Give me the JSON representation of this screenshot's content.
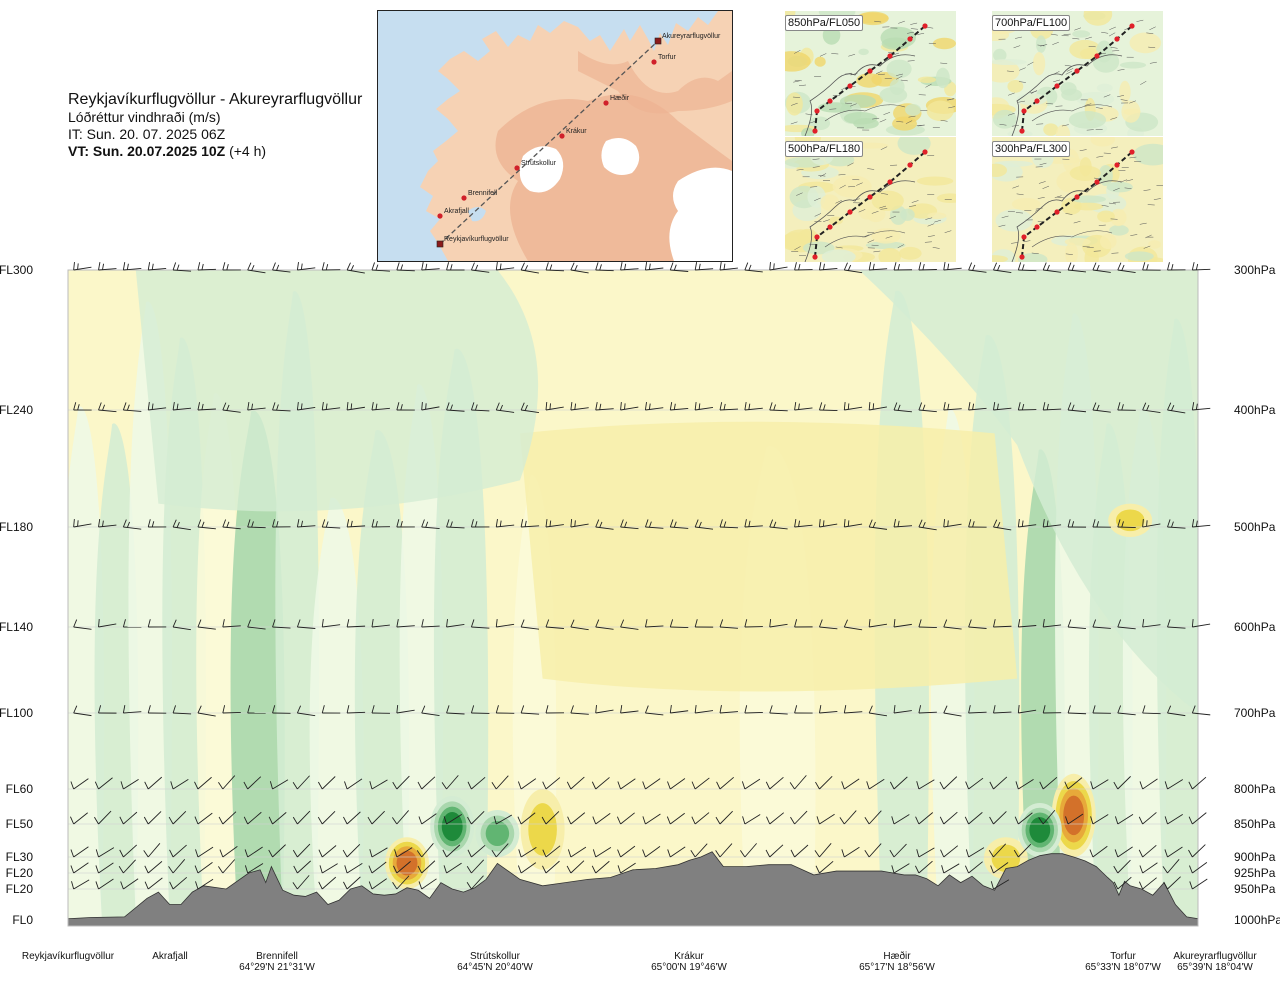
{
  "header": {
    "route": "Reykjavíkurflugvöllur - Akureyrarflugvöllur",
    "variable": "Lóðréttur vindhraði (m/s)",
    "issue_time": "IT: Sun. 20. 07. 2025 06Z",
    "valid_time_bold": "VT: Sun. 20.07.2025 10Z",
    "valid_time_offset": " (+4 h)"
  },
  "map": {
    "colors": {
      "sea": "#c6def0",
      "land": "#f6d2b4",
      "highland": "#eeb493",
      "glacier": "#ffffff",
      "route": "#d0202a"
    },
    "waypoints": [
      {
        "name": "Akureyrarflugvöllur",
        "kind": "airport"
      },
      {
        "name": "Torfur",
        "kind": "point"
      },
      {
        "name": "Hæðir",
        "kind": "point"
      },
      {
        "name": "Krákur",
        "kind": "point"
      },
      {
        "name": "Strútskollur",
        "kind": "point"
      },
      {
        "name": "Brennifell",
        "kind": "point"
      },
      {
        "name": "Akrafjall",
        "kind": "point"
      },
      {
        "name": "Reykjavíkurflugvöllur",
        "kind": "airport"
      }
    ]
  },
  "insets": [
    {
      "label": "850hPa/FL050"
    },
    {
      "label": "700hPa/FL100"
    },
    {
      "label": "500hPa/FL180"
    },
    {
      "label": "300hPa/FL300"
    }
  ],
  "chart_data": {
    "type": "heatmap",
    "subtype": "vertical cross-section",
    "title": "Reykjavíkurflugvöllur - Akureyrarflugvöllur",
    "variable": "Lóðréttur vindhraði (m/s)",
    "colors": {
      "strong_up": "#1e8a3a",
      "mod_up": "#61b572",
      "weak_up": "#a9d7ad",
      "very_weak_up": "#d4ecd3",
      "near_zero": "#eef8e6",
      "very_weak_down": "#fbf9d8",
      "weak_down": "#f7eeaa",
      "mod_down": "#ecd84a",
      "strong_down": "#e7a93a",
      "very_strong_down": "#d3712a",
      "terrain": "#808080"
    },
    "left_axis_ticks": [
      {
        "label": "FL300",
        "hpa": 300
      },
      {
        "label": "FL240",
        "hpa": 400
      },
      {
        "label": "FL180",
        "hpa": 500
      },
      {
        "label": "FL140",
        "hpa": 600
      },
      {
        "label": "FL100",
        "hpa": 700
      },
      {
        "label": "FL60",
        "hpa": 800
      },
      {
        "label": "FL50",
        "hpa": 850
      },
      {
        "label": "FL30",
        "hpa": 900
      },
      {
        "label": "FL20",
        "hpa": 925
      },
      {
        "label": "FL20",
        "hpa": 950
      },
      {
        "label": "FL0",
        "hpa": 1000
      }
    ],
    "right_axis_ticks": [
      "300hPa",
      "400hPa",
      "500hPa",
      "600hPa",
      "700hPa",
      "800hPa",
      "850hPa",
      "900hPa",
      "925hPa",
      "950hPa",
      "1000hPa"
    ],
    "pressure_levels": [
      300,
      400,
      500,
      600,
      700,
      800,
      850,
      900,
      925,
      950,
      1000
    ],
    "route_points": [
      {
        "name": "Reykjavíkurflugvöllur",
        "coord": "",
        "distance": 0
      },
      {
        "name": "Akrafjall",
        "coord": "",
        "distance": 8
      },
      {
        "name": "Brennifell",
        "coord": "64°29'N 21°31'W",
        "distance": 19
      },
      {
        "name": "Strútskollur",
        "coord": "64°45'N 20°40'W",
        "distance": 38
      },
      {
        "name": "Krákur",
        "coord": "65°00'N 19°46'W",
        "distance": 57
      },
      {
        "name": "Hæðir",
        "coord": "65°17'N 18°56'W",
        "distance": 75
      },
      {
        "name": "Torfur",
        "coord": "65°33'N 18°07'W",
        "distance": 94
      },
      {
        "name": "Akureyrarflugvöllur",
        "coord": "65°39'N 18°04'W",
        "distance": 100
      }
    ],
    "terrain_profile": {
      "distance": [
        0,
        2,
        5,
        7,
        8,
        9,
        10,
        11,
        12,
        14,
        16,
        17,
        17.5,
        18,
        19,
        20,
        21,
        22,
        23,
        24,
        25,
        26,
        27,
        28,
        29,
        30,
        31,
        32,
        33,
        34,
        35,
        36,
        37,
        38,
        40,
        42,
        44,
        46,
        48,
        50,
        52,
        54,
        55,
        56,
        57,
        58,
        60,
        62,
        64,
        66,
        68,
        70,
        72,
        74,
        75,
        76,
        77,
        78,
        79,
        80,
        81,
        82,
        83,
        84,
        85,
        86,
        87,
        88,
        89,
        90,
        91,
        92,
        92.5,
        93,
        93.5,
        94,
        95,
        96,
        97,
        98,
        99,
        100
      ],
      "hpa": [
        998,
        996,
        995,
        965,
        955,
        975,
        975,
        955,
        945,
        950,
        925,
        920,
        940,
        915,
        952,
        960,
        962,
        955,
        975,
        968,
        950,
        945,
        958,
        960,
        958,
        948,
        952,
        965,
        940,
        950,
        955,
        948,
        935,
        910,
        935,
        945,
        940,
        935,
        932,
        920,
        918,
        912,
        905,
        900,
        892,
        915,
        915,
        912,
        912,
        928,
        922,
        922,
        922,
        928,
        928,
        934,
        945,
        928,
        940,
        930,
        945,
        952,
        918,
        915,
        905,
        898,
        895,
        895,
        900,
        906,
        915,
        932,
        940,
        960,
        938,
        945,
        950,
        960,
        940,
        975,
        995,
        998
      ]
    },
    "downdraft_cores_hpa_by_distance": [
      {
        "distance": 30,
        "top_hpa": 870,
        "bottom_hpa": 950,
        "max_category": "very_strong_down"
      },
      {
        "distance": 42,
        "top_hpa": 800,
        "bottom_hpa": 920,
        "max_category": "mod_down"
      },
      {
        "distance": 83,
        "top_hpa": 870,
        "bottom_hpa": 935,
        "max_category": "mod_down"
      },
      {
        "distance": 89,
        "top_hpa": 780,
        "bottom_hpa": 900,
        "max_category": "very_strong_down"
      },
      {
        "distance": 94,
        "top_hpa": 480,
        "bottom_hpa": 510,
        "max_category": "mod_down"
      }
    ],
    "updraft_cores_hpa_by_distance": [
      {
        "distance": 34,
        "top_hpa": 810,
        "bottom_hpa": 900,
        "max_category": "strong_up"
      },
      {
        "distance": 38,
        "top_hpa": 830,
        "bottom_hpa": 900,
        "max_category": "mod_up"
      },
      {
        "distance": 86,
        "top_hpa": 820,
        "bottom_hpa": 900,
        "max_category": "strong_up"
      }
    ],
    "xlim": [
      0,
      100
    ],
    "ylim_hpa": [
      1000,
      300
    ],
    "legend": "none"
  }
}
